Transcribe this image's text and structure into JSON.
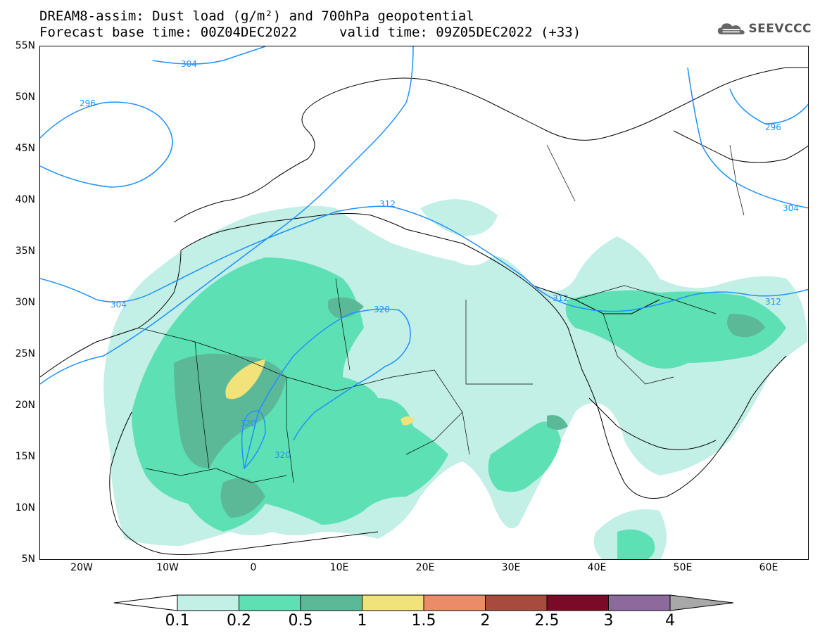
{
  "title": {
    "line1": "DREAM8-assim: Dust load (g/m²) and 700hPa geopotential",
    "line2": "Forecast base time: 00Z04DEC2022",
    "valid": "valid time: 09Z05DEC2022 (+33)"
  },
  "logo": {
    "text": "SEEVCCC",
    "icon": "cloud-logo-icon"
  },
  "axes": {
    "lat_labels": [
      "55N",
      "50N",
      "45N",
      "40N",
      "35N",
      "30N",
      "25N",
      "20N",
      "15N",
      "10N",
      "5N"
    ],
    "lon_labels": [
      "20W",
      "10W",
      "0",
      "10E",
      "20E",
      "30E",
      "40E",
      "50E",
      "60E"
    ]
  },
  "contours": {
    "labels": [
      "304",
      "296",
      "312",
      "304",
      "320",
      "320",
      "320",
      "312",
      "312",
      "296",
      "304"
    ]
  },
  "colorbar": {
    "labels": [
      "0.1",
      "0.2",
      "0.5",
      "1",
      "1.5",
      "2",
      "2.5",
      "3",
      "4"
    ],
    "colors": [
      "#c2efe6",
      "#5de0b3",
      "#5cb998",
      "#f1e27a",
      "#eb8b68",
      "#a84b3d",
      "#7b0a26",
      "#8d6a9c",
      "#a8a8a8"
    ]
  },
  "colors": {
    "contour": "#1e90ff",
    "dust_low": "#c2efe6",
    "dust_mid": "#5de0b3",
    "dust_high": "#5cb998",
    "dust_peak": "#f1e27a"
  }
}
